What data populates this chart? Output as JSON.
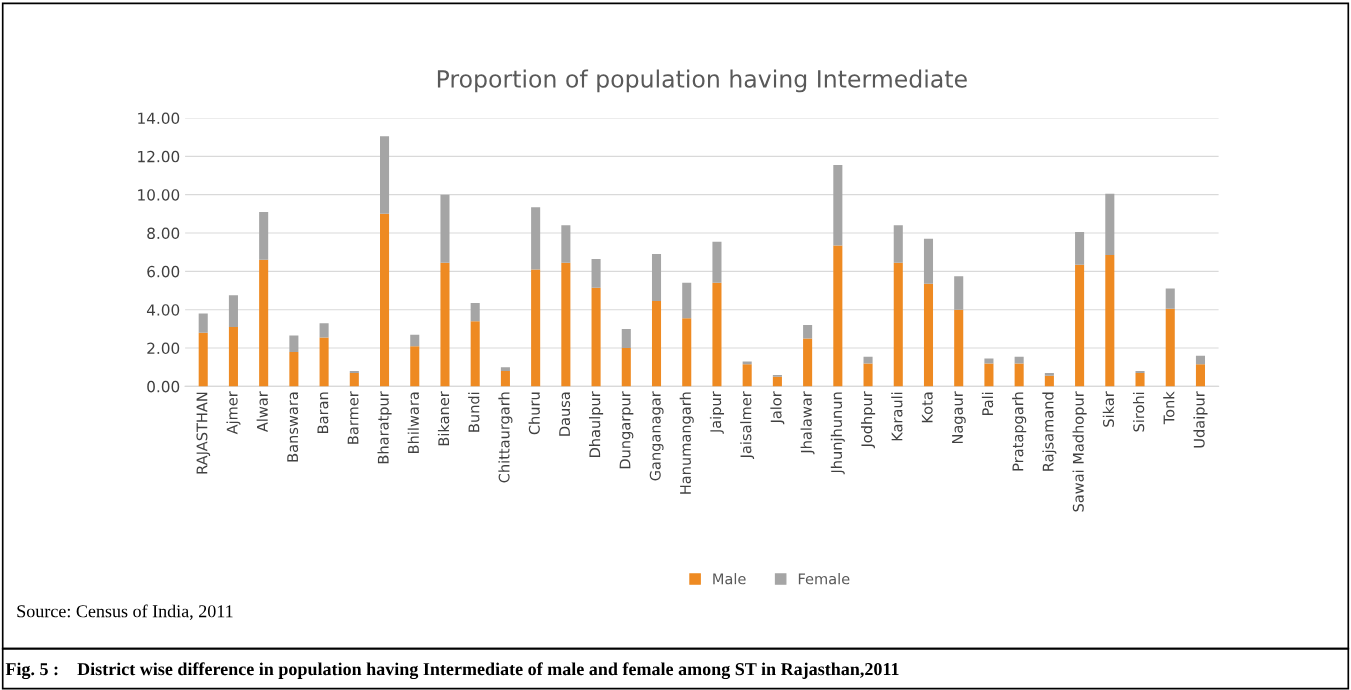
{
  "chart_data": {
    "type": "bar",
    "title": "Proportion of population having Intermediate",
    "stacked": true,
    "categories": [
      "RAJASTHAN",
      "Ajmer",
      "Alwar",
      "Banswara",
      "Baran",
      "Barmer",
      "Bharatpur",
      "Bhilwara",
      "Bikaner",
      "Bundi",
      "Chittaurgarh",
      "Churu",
      "Dausa",
      "Dhaulpur",
      "Dungarpur",
      "Ganganagar",
      "Hanumangarh",
      "Jaipur",
      "Jaisalmer",
      "Jalor",
      "Jhalawar",
      "Jhunjhunun",
      "Jodhpur",
      "Karauli",
      "Kota",
      "Nagaur",
      "Pali",
      "Pratapgarh",
      "Rajsamand",
      "Sawai Madhopur",
      "Sikar",
      "Sirohi",
      "Tonk",
      "Udaipur"
    ],
    "series": [
      {
        "name": "Male",
        "color": "#ee8a22",
        "values": [
          2.8,
          3.1,
          6.6,
          1.8,
          2.55,
          0.7,
          9.0,
          2.1,
          6.45,
          3.4,
          0.8,
          6.1,
          6.45,
          5.15,
          2.0,
          4.45,
          3.55,
          5.4,
          1.15,
          0.5,
          2.5,
          7.35,
          1.2,
          6.45,
          5.35,
          4.0,
          1.2,
          1.2,
          0.55,
          6.35,
          6.85,
          0.7,
          4.05,
          1.15
        ]
      },
      {
        "name": "Female",
        "color": "#a5a5a5",
        "values": [
          1.0,
          1.65,
          2.5,
          0.85,
          0.75,
          0.1,
          4.05,
          0.6,
          3.55,
          0.95,
          0.2,
          3.25,
          1.95,
          1.5,
          1.0,
          2.45,
          1.85,
          2.15,
          0.15,
          0.1,
          0.7,
          4.2,
          0.35,
          1.95,
          2.35,
          1.75,
          0.25,
          0.35,
          0.15,
          1.7,
          3.2,
          0.1,
          1.05,
          0.45
        ]
      }
    ],
    "ylim": [
      0,
      14
    ],
    "yticks": [
      {
        "value": 0,
        "label": "0.00"
      },
      {
        "value": 2,
        "label": "2.00"
      },
      {
        "value": 4,
        "label": "4.00"
      },
      {
        "value": 6,
        "label": "6.00"
      },
      {
        "value": 8,
        "label": "8.00"
      },
      {
        "value": 10,
        "label": "10.00"
      },
      {
        "value": 12,
        "label": "12.00"
      },
      {
        "value": 14,
        "label": "14.00"
      }
    ],
    "grid": "y",
    "legend": "bottom",
    "annotations": [
      "Source: Census of India, 2011",
      "Fig. 5 :    District wise difference in population having Intermediate of male and female among ST in Rajasthan,2011"
    ]
  }
}
